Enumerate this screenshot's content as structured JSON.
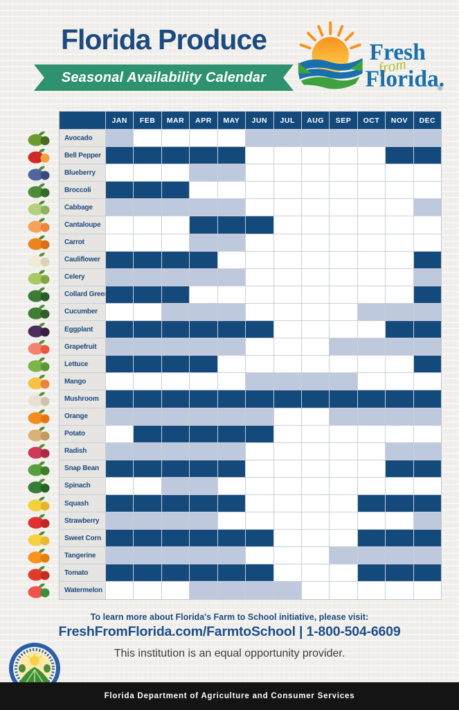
{
  "header": {
    "title": "Florida Produce",
    "banner": "Seasonal Availability Calendar",
    "logo": {
      "fresh": "Fresh",
      "from": "from",
      "florida": "Florida.",
      "registered": "®"
    }
  },
  "chart_data": {
    "type": "heatmap",
    "title": "Florida Produce — Seasonal Availability Calendar",
    "columns": [
      "JAN",
      "FEB",
      "MAR",
      "APR",
      "MAY",
      "JUN",
      "JUL",
      "AUG",
      "SEP",
      "OCT",
      "NOV",
      "DEC"
    ],
    "cell_codes": {
      "D": "available-dark-blue",
      "L": "available-light-blue",
      ".": "not-available-white"
    },
    "colors": {
      "dark": "#14497B",
      "light": "#BFC9DE",
      "none": "#FFFFFF",
      "header": "#14497B",
      "label_bg": "#E6E5E2",
      "label_text": "#1C4B80"
    },
    "rows": [
      {
        "name": "Avocado",
        "icon": "avocado",
        "cells": "L....LLLLLLL"
      },
      {
        "name": "Bell Pepper",
        "icon": "bell-pepper",
        "cells": "DDDDD.....DD"
      },
      {
        "name": "Blueberry",
        "icon": "blueberry",
        "cells": "...LL......."
      },
      {
        "name": "Broccoli",
        "icon": "broccoli",
        "cells": "DDD........."
      },
      {
        "name": "Cabbage",
        "icon": "cabbage",
        "cells": "LLLLL......L"
      },
      {
        "name": "Cantaloupe",
        "icon": "cantaloupe",
        "cells": "...DDD......"
      },
      {
        "name": "Carrot",
        "icon": "carrot",
        "cells": "...LL......."
      },
      {
        "name": "Cauliflower",
        "icon": "cauliflower",
        "cells": "DDDD.......D"
      },
      {
        "name": "Celery",
        "icon": "celery",
        "cells": "LLLLL......L"
      },
      {
        "name": "Collard Green",
        "icon": "collard-green",
        "cells": "DDD........D"
      },
      {
        "name": "Cucumber",
        "icon": "cucumber",
        "cells": "..LLL....LLL"
      },
      {
        "name": "Eggplant",
        "icon": "eggplant",
        "cells": "DDDDDD....DD"
      },
      {
        "name": "Grapefruit",
        "icon": "grapefruit",
        "cells": "LLLLL...LLLL"
      },
      {
        "name": "Lettuce",
        "icon": "lettuce",
        "cells": "DDDD.......D"
      },
      {
        "name": "Mango",
        "icon": "mango",
        "cells": ".....LLLL..."
      },
      {
        "name": "Mushroom",
        "icon": "mushroom",
        "cells": "DDDDDDDDDDDD"
      },
      {
        "name": "Orange",
        "icon": "orange",
        "cells": "LLLLLL..LLLL"
      },
      {
        "name": "Potato",
        "icon": "potato",
        "cells": ".DDDDD......"
      },
      {
        "name": "Radish",
        "icon": "radish",
        "cells": "LLLLL.....LL"
      },
      {
        "name": "Snap Bean",
        "icon": "snap-bean",
        "cells": "DDDDD.....DD"
      },
      {
        "name": "Spinach",
        "icon": "spinach",
        "cells": "..LL........"
      },
      {
        "name": "Squash",
        "icon": "squash",
        "cells": "DDDDD....DDD"
      },
      {
        "name": "Strawberry",
        "icon": "strawberry",
        "cells": "LLLL.......L"
      },
      {
        "name": "Sweet Corn",
        "icon": "sweet-corn",
        "cells": "DDDDDD...DDD"
      },
      {
        "name": "Tangerine",
        "icon": "tangerine",
        "cells": "LLLLL...LLLL"
      },
      {
        "name": "Tomato",
        "icon": "tomato",
        "cells": "DDDDDD...DDD"
      },
      {
        "name": "Watermelon",
        "icon": "watermelon",
        "cells": "...LLLL....."
      }
    ]
  },
  "icon_colors": {
    "avocado": [
      "#6b9a2f",
      "#4a6b1f"
    ],
    "bell-pepper": [
      "#d22b27",
      "#f2a03d"
    ],
    "blueberry": [
      "#5166a0",
      "#3a4a7c"
    ],
    "broccoli": [
      "#4d8c3a",
      "#356b28"
    ],
    "cabbage": [
      "#b7cf7e",
      "#8fb35a"
    ],
    "cantaloupe": [
      "#f2a45a",
      "#e8853b"
    ],
    "carrot": [
      "#ef8322",
      "#d96f15"
    ],
    "cauliflower": [
      "#f1ead7",
      "#dcd3b8"
    ],
    "celery": [
      "#a9c964",
      "#7fa843"
    ],
    "collard-green": [
      "#3c7a35",
      "#2c5c27"
    ],
    "cucumber": [
      "#3f7d34",
      "#2f6127"
    ],
    "eggplant": [
      "#4b2d5e",
      "#35203f"
    ],
    "grapefruit": [
      "#f2836f",
      "#e9573f"
    ],
    "lettuce": [
      "#7ab648",
      "#5c9634"
    ],
    "mango": [
      "#f6c244",
      "#e8833a"
    ],
    "mushroom": [
      "#e9e1d3",
      "#cfc3ae"
    ],
    "orange": [
      "#f58c1e",
      "#e9740f"
    ],
    "potato": [
      "#d9b275",
      "#c29a5d"
    ],
    "radish": [
      "#cf3a56",
      "#a92a44"
    ],
    "snap-bean": [
      "#57a03c",
      "#3f7f2a"
    ],
    "spinach": [
      "#357e35",
      "#276227"
    ],
    "squash": [
      "#f4d03f",
      "#e6b52c"
    ],
    "strawberry": [
      "#e03131",
      "#c22424"
    ],
    "sweet-corn": [
      "#f6d145",
      "#e9b92e"
    ],
    "tangerine": [
      "#f7941e",
      "#e67e0e"
    ],
    "tomato": [
      "#e23b2c",
      "#c72c1f"
    ],
    "watermelon": [
      "#ef5350",
      "#3f8f3a"
    ]
  },
  "footer": {
    "info_line": "To learn more about Florida's Farm to School initiative, please visit:",
    "link_line": "FreshFromFlorida.com/FarmtoSchool | 1-800-504-6609",
    "eop_line": "This institution is an equal opportunity provider.",
    "bar_text": "Florida Department of Agriculture and Consumer Services"
  }
}
